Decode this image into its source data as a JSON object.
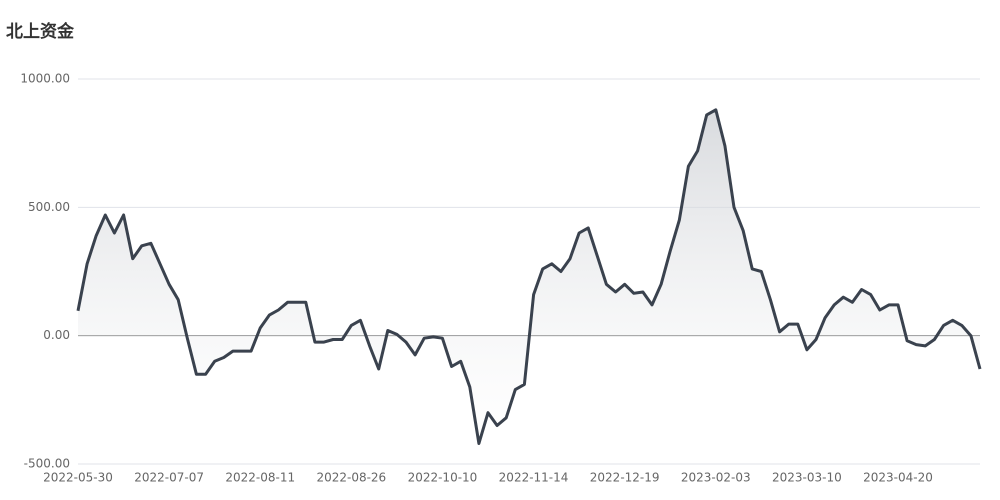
{
  "chart_data": {
    "type": "line",
    "title": "北上资金",
    "categories": [
      "2022-05-30",
      null,
      null,
      null,
      null,
      null,
      null,
      null,
      null,
      null,
      "2022-07-07",
      null,
      null,
      null,
      null,
      null,
      null,
      null,
      null,
      null,
      "2022-08-11",
      null,
      null,
      null,
      null,
      null,
      null,
      null,
      null,
      null,
      "2022-08-26",
      null,
      null,
      null,
      null,
      null,
      null,
      null,
      null,
      null,
      "2022-10-10",
      null,
      null,
      null,
      null,
      null,
      null,
      null,
      null,
      null,
      "2022-11-14",
      null,
      null,
      null,
      null,
      null,
      null,
      null,
      null,
      null,
      "2022-12-19",
      null,
      null,
      null,
      null,
      null,
      null,
      null,
      null,
      null,
      "2023-02-03",
      null,
      null,
      null,
      null,
      null,
      null,
      null,
      null,
      null,
      "2023-03-10",
      null,
      null,
      null,
      null,
      null,
      null,
      null,
      null,
      null,
      "2023-04-20",
      null,
      null,
      null,
      null,
      null,
      null,
      null,
      null,
      null
    ],
    "values": [
      97,
      280,
      390,
      470,
      400,
      470,
      300,
      350,
      360,
      280,
      200,
      140,
      -10,
      -150,
      -150,
      -100,
      -85,
      -60,
      -60,
      -60,
      30,
      80,
      100,
      130,
      130,
      130,
      -25,
      -25,
      -15,
      -15,
      40,
      60,
      -40,
      -130,
      20,
      5,
      -25,
      -75,
      -10,
      -5,
      -10,
      -120,
      -100,
      -200,
      -420,
      -300,
      -350,
      -320,
      -210,
      -190,
      160,
      260,
      280,
      250,
      300,
      400,
      420,
      310,
      200,
      170,
      200,
      165,
      170,
      120,
      200,
      330,
      450,
      660,
      720,
      860,
      880,
      740,
      500,
      410,
      260,
      250,
      140,
      15,
      45,
      45,
      -55,
      -15,
      70,
      120,
      150,
      130,
      180,
      160,
      100,
      120,
      120,
      -20,
      -35,
      -40,
      -15,
      40,
      60,
      40,
      0,
      -130
    ],
    "color": "#3a424e",
    "ylim": [
      -500,
      1000
    ],
    "yticks": [
      {
        "value": -500,
        "label": "-500.00"
      },
      {
        "value": 0,
        "label": "0.00"
      },
      {
        "value": 500,
        "label": "500.00"
      },
      {
        "value": 1000,
        "label": "1000.00"
      }
    ],
    "grid": true
  }
}
